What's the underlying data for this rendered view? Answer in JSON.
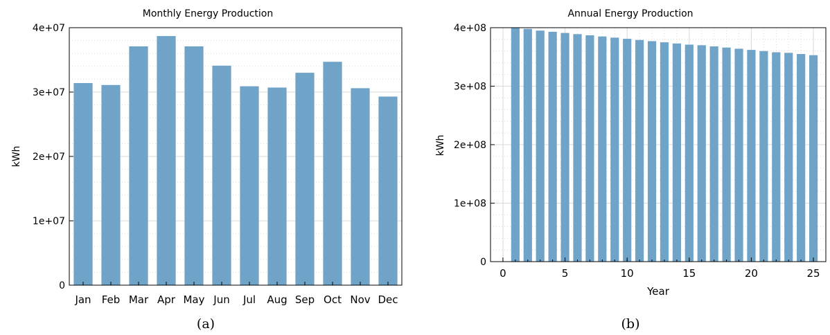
{
  "chart_data": [
    {
      "type": "bar",
      "title": "Monthly Energy Production",
      "xlabel": "",
      "ylabel": "kWh",
      "categories": [
        "Jan",
        "Feb",
        "Mar",
        "Apr",
        "May",
        "Jun",
        "Jul",
        "Aug",
        "Sep",
        "Oct",
        "Nov",
        "Dec"
      ],
      "values": [
        31400000,
        31100000,
        37100000,
        38700000,
        37100000,
        34100000,
        30900000,
        30700000,
        33000000,
        34700000,
        30600000,
        29300000
      ],
      "ylim": [
        0,
        40000000
      ],
      "yticks": [
        0,
        10000000,
        20000000,
        30000000,
        40000000
      ],
      "ytick_labels": [
        "0",
        "1e+07",
        "2e+07",
        "3e+07",
        "4e+07"
      ],
      "grid": true,
      "caption": "(a)",
      "color": "#6fa3c7"
    },
    {
      "type": "bar",
      "title": "Annual Energy Production",
      "xlabel": "Year",
      "ylabel": "kWh",
      "x": [
        1,
        2,
        3,
        4,
        5,
        6,
        7,
        8,
        9,
        10,
        11,
        12,
        13,
        14,
        15,
        16,
        17,
        18,
        19,
        20,
        21,
        22,
        23,
        24,
        25
      ],
      "values": [
        400000000,
        398000000,
        395000000,
        393000000,
        391000000,
        389000000,
        387000000,
        385000000,
        383000000,
        381000000,
        379000000,
        377000000,
        375000000,
        373000000,
        371000000,
        370000000,
        368000000,
        366000000,
        364000000,
        362000000,
        360000000,
        358000000,
        357000000,
        355000000,
        353000000
      ],
      "xlim": [
        -1,
        26
      ],
      "xticks": [
        0,
        5,
        10,
        15,
        20,
        25
      ],
      "xtick_labels": [
        "0",
        "5",
        "10",
        "15",
        "20",
        "25"
      ],
      "ylim": [
        0,
        400000000
      ],
      "yticks": [
        0,
        100000000,
        200000000,
        300000000,
        400000000
      ],
      "ytick_labels": [
        "0",
        "1e+08",
        "2e+08",
        "3e+08",
        "4e+08"
      ],
      "grid": true,
      "caption": "(b)",
      "color": "#6fa3c7"
    }
  ]
}
